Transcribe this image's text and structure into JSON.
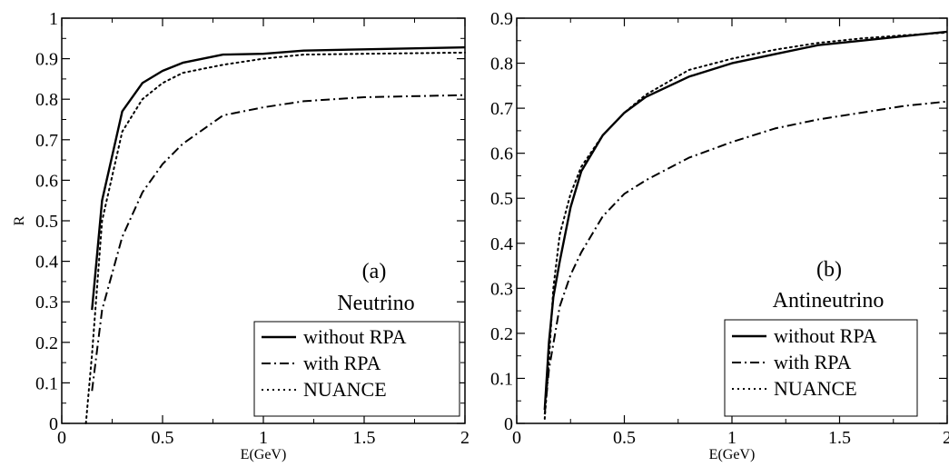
{
  "chart_data": [
    {
      "type": "line",
      "annotation_panel": "(a)",
      "annotation_title": "Neutrino",
      "xlabel": "E(GeV)",
      "ylabel": "R",
      "xlim": [
        0,
        2
      ],
      "ylim": [
        0,
        1
      ],
      "xticks": [
        "0",
        "0.5",
        "1",
        "1.5",
        "2"
      ],
      "yticks": [
        "0",
        "0.1",
        "0.2",
        "0.3",
        "0.4",
        "0.5",
        "0.6",
        "0.7",
        "0.8",
        "0.9",
        "1"
      ],
      "grid": false,
      "legend_position": "bottom-right",
      "series": [
        {
          "name": "without RPA",
          "style": "solid",
          "points": [
            [
              0.15,
              0.28
            ],
            [
              0.2,
              0.55
            ],
            [
              0.3,
              0.77
            ],
            [
              0.4,
              0.84
            ],
            [
              0.5,
              0.87
            ],
            [
              0.6,
              0.89
            ],
            [
              0.8,
              0.91
            ],
            [
              1.0,
              0.912
            ],
            [
              1.2,
              0.92
            ],
            [
              1.5,
              0.923
            ],
            [
              2.0,
              0.928
            ]
          ]
        },
        {
          "name": "with RPA",
          "style": "dashdot",
          "points": [
            [
              0.15,
              0.08
            ],
            [
              0.2,
              0.28
            ],
            [
              0.3,
              0.46
            ],
            [
              0.4,
              0.57
            ],
            [
              0.5,
              0.64
            ],
            [
              0.6,
              0.69
            ],
            [
              0.8,
              0.76
            ],
            [
              1.0,
              0.78
            ],
            [
              1.2,
              0.795
            ],
            [
              1.5,
              0.805
            ],
            [
              2.0,
              0.81
            ]
          ]
        },
        {
          "name": "NUANCE",
          "style": "dotted",
          "points": [
            [
              0.12,
              0.0
            ],
            [
              0.15,
              0.17
            ],
            [
              0.2,
              0.5
            ],
            [
              0.3,
              0.72
            ],
            [
              0.4,
              0.8
            ],
            [
              0.5,
              0.84
            ],
            [
              0.6,
              0.865
            ],
            [
              0.8,
              0.885
            ],
            [
              1.0,
              0.9
            ],
            [
              1.2,
              0.91
            ],
            [
              1.5,
              0.912
            ],
            [
              2.0,
              0.915
            ]
          ]
        }
      ]
    },
    {
      "type": "line",
      "annotation_panel": "(b)",
      "annotation_title": "Antineutrino",
      "xlabel": "E(GeV)",
      "ylabel": "",
      "xlim": [
        0,
        2
      ],
      "ylim": [
        0,
        0.9
      ],
      "xticks": [
        "0",
        "0.5",
        "1",
        "1.5",
        "2"
      ],
      "yticks": [
        "0",
        "0.1",
        "0.2",
        "0.3",
        "0.4",
        "0.5",
        "0.6",
        "0.7",
        "0.8",
        "0.9"
      ],
      "grid": false,
      "legend_position": "bottom-right",
      "series": [
        {
          "name": "without RPA",
          "style": "solid",
          "points": [
            [
              0.13,
              0.03
            ],
            [
              0.15,
              0.18
            ],
            [
              0.17,
              0.28
            ],
            [
              0.2,
              0.36
            ],
            [
              0.25,
              0.48
            ],
            [
              0.3,
              0.56
            ],
            [
              0.4,
              0.64
            ],
            [
              0.5,
              0.69
            ],
            [
              0.6,
              0.725
            ],
            [
              0.8,
              0.77
            ],
            [
              1.0,
              0.8
            ],
            [
              1.2,
              0.82
            ],
            [
              1.4,
              0.84
            ],
            [
              1.6,
              0.85
            ],
            [
              1.8,
              0.86
            ],
            [
              2.0,
              0.87
            ]
          ]
        },
        {
          "name": "with RPA",
          "style": "dashdot",
          "points": [
            [
              0.13,
              0.02
            ],
            [
              0.15,
              0.12
            ],
            [
              0.2,
              0.26
            ],
            [
              0.25,
              0.33
            ],
            [
              0.3,
              0.38
            ],
            [
              0.4,
              0.46
            ],
            [
              0.5,
              0.51
            ],
            [
              0.6,
              0.54
            ],
            [
              0.8,
              0.59
            ],
            [
              1.0,
              0.625
            ],
            [
              1.2,
              0.655
            ],
            [
              1.4,
              0.675
            ],
            [
              1.6,
              0.69
            ],
            [
              1.8,
              0.705
            ],
            [
              2.0,
              0.715
            ]
          ]
        },
        {
          "name": "NUANCE",
          "style": "dotted",
          "points": [
            [
              0.13,
              0.01
            ],
            [
              0.15,
              0.14
            ],
            [
              0.17,
              0.3
            ],
            [
              0.2,
              0.42
            ],
            [
              0.25,
              0.51
            ],
            [
              0.3,
              0.57
            ],
            [
              0.4,
              0.64
            ],
            [
              0.5,
              0.69
            ],
            [
              0.6,
              0.73
            ],
            [
              0.8,
              0.785
            ],
            [
              1.0,
              0.81
            ],
            [
              1.2,
              0.83
            ],
            [
              1.4,
              0.845
            ],
            [
              1.6,
              0.855
            ],
            [
              1.8,
              0.862
            ],
            [
              2.0,
              0.868
            ]
          ]
        }
      ]
    }
  ]
}
